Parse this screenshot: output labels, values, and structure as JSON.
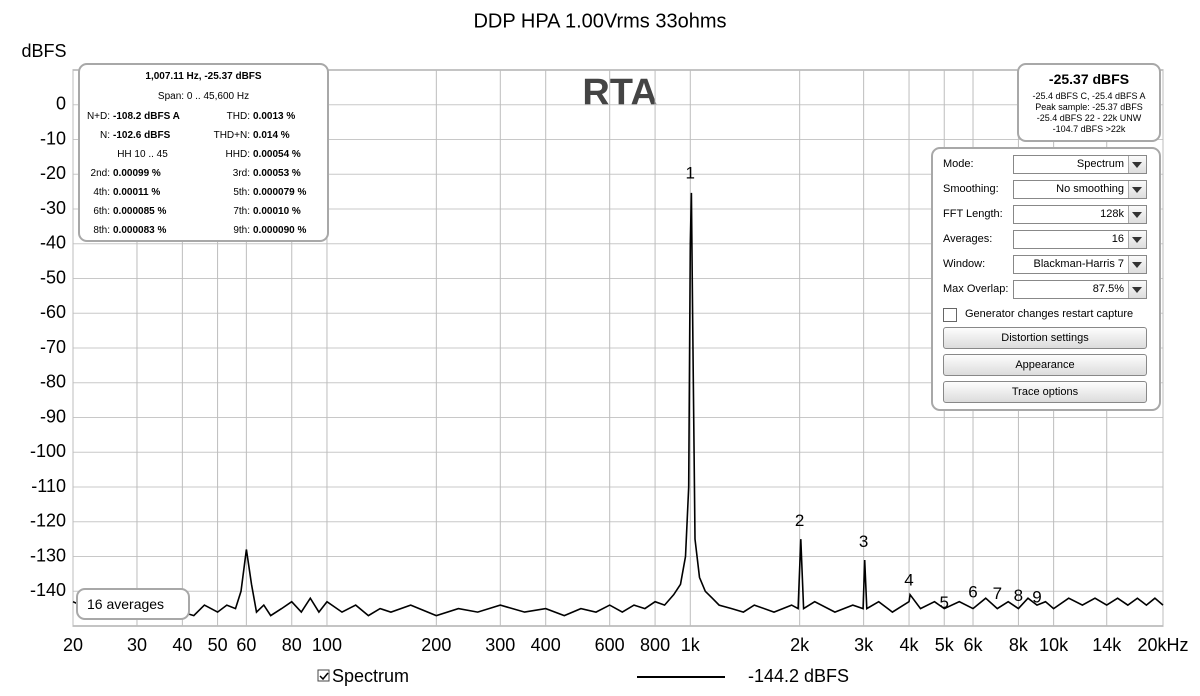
{
  "chart_data": {
    "type": "line",
    "title": "DDP HPA 1.00Vrms 33ohms",
    "y_label": "dBFS",
    "overlay_title": "RTA",
    "x_scale": "log",
    "grid": true,
    "xlim": [
      20,
      20000
    ],
    "ylim": [
      -150,
      10
    ],
    "xticks": [
      20,
      30,
      40,
      50,
      60,
      80,
      100,
      200,
      300,
      400,
      600,
      800,
      {
        "value": 1000,
        "label": "1k"
      },
      {
        "value": 2000,
        "label": "2k"
      },
      {
        "value": 3000,
        "label": "3k"
      },
      {
        "value": 4000,
        "label": "4k"
      },
      {
        "value": 5000,
        "label": "5k"
      },
      {
        "value": 6000,
        "label": "6k"
      },
      {
        "value": 8000,
        "label": "8k"
      },
      {
        "value": 10000,
        "label": "10k"
      },
      {
        "value": 14000,
        "label": "14k"
      },
      {
        "value": 20000,
        "label": "20kHz"
      }
    ],
    "yticks": [
      0,
      -10,
      -20,
      -30,
      -40,
      -50,
      -60,
      -70,
      -80,
      -90,
      -100,
      -110,
      -120,
      -130,
      -140
    ],
    "x": [
      20,
      22,
      25,
      28,
      30,
      33,
      36,
      40,
      43,
      46,
      50,
      53,
      56,
      58,
      60,
      62,
      64,
      67,
      70,
      75,
      80,
      85,
      90,
      95,
      100,
      110,
      120,
      130,
      140,
      150,
      170,
      200,
      230,
      260,
      300,
      350,
      400,
      450,
      500,
      550,
      600,
      650,
      700,
      750,
      800,
      850,
      900,
      940,
      970,
      990,
      1000,
      1007,
      1015,
      1030,
      1060,
      1100,
      1150,
      1200,
      1300,
      1400,
      1500,
      1700,
      1900,
      1980,
      2014,
      2050,
      2200,
      2500,
      2800,
      2990,
      3021,
      3060,
      3300,
      3600,
      4000,
      4028,
      4300,
      4700,
      5000,
      5500,
      6000,
      6500,
      7000,
      7500,
      8000,
      8500,
      9000,
      9500,
      10000,
      11000,
      12000,
      13000,
      14000,
      15000,
      16000,
      17000,
      18000,
      19000,
      20000
    ],
    "series": [
      {
        "name": "Spectrum",
        "color": "#000000",
        "values": [
          -143,
          -145,
          -146,
          -144,
          -146,
          -147,
          -145,
          -146,
          -147,
          -144,
          -146,
          -144,
          -145,
          -140,
          -128,
          -138,
          -146,
          -144,
          -147,
          -145,
          -143,
          -146,
          -142,
          -146,
          -143,
          -146,
          -144,
          -147,
          -145,
          -146,
          -144,
          -147,
          -145,
          -146,
          -144,
          -146,
          -145,
          -147,
          -145,
          -146,
          -144,
          -146,
          -144,
          -145,
          -143,
          -144,
          -141,
          -138,
          -130,
          -110,
          -40,
          -25.37,
          -60,
          -125,
          -136,
          -140,
          -142,
          -144,
          -145,
          -146,
          -144,
          -146,
          -144,
          -145,
          -125,
          -145,
          -143,
          -146,
          -144,
          -145,
          -131,
          -145,
          -143,
          -146,
          -143,
          -141,
          -145,
          -143,
          -145,
          -143,
          -145,
          -142,
          -145,
          -143,
          -145,
          -142,
          -144,
          -143,
          -145,
          -142,
          -144,
          -142,
          -144,
          -142,
          -144,
          -142,
          -144,
          -142,
          -144
        ]
      }
    ],
    "legend_readout": "-144.2 dBFS",
    "markers": [
      {
        "label": "1",
        "x": 1000,
        "y": -20
      },
      {
        "label": "2",
        "x": 2000,
        "y": -120
      },
      {
        "label": "3",
        "x": 3000,
        "y": -126
      },
      {
        "label": "4",
        "x": 4000,
        "y": -137
      },
      {
        "label": "5",
        "x": 5000,
        "y": -143.5
      },
      {
        "label": "6",
        "x": 6000,
        "y": -140.5
      },
      {
        "label": "7",
        "x": 7000,
        "y": -141
      },
      {
        "label": "8",
        "x": 8000,
        "y": -141.5
      },
      {
        "label": "9",
        "x": 9000,
        "y": -142
      }
    ]
  },
  "info": {
    "header": "1,007.11 Hz, -25.37 dBFS",
    "span": "Span: 0 .. 45,600 Hz",
    "rows": [
      [
        [
          "N+D:",
          "-108.2 dBFS A"
        ],
        [
          "THD:",
          "0.0013 %"
        ]
      ],
      [
        [
          "N:",
          "-102.6 dBFS"
        ],
        [
          "THD+N:",
          "0.014 %"
        ]
      ],
      [
        [
          "HH 10 .. 45"
        ],
        [
          "HHD:",
          "0.00054 %"
        ]
      ],
      [
        [
          "2nd:",
          "0.00099 %"
        ],
        [
          "3rd:",
          "0.00053 %"
        ]
      ],
      [
        [
          "4th:",
          "0.00011 %"
        ],
        [
          "5th:",
          "0.000079 %"
        ]
      ],
      [
        [
          "6th:",
          "0.000085 %"
        ],
        [
          "7th:",
          "0.00010 %"
        ]
      ],
      [
        [
          "8th:",
          "0.000083 %"
        ],
        [
          "9th:",
          "0.000090 %"
        ]
      ]
    ]
  },
  "level": {
    "main": "-25.37 dBFS",
    "lines": [
      "-25.4 dBFS C, -25.4 dBFS A",
      "Peak sample: -25.37 dBFS",
      "-25.4 dBFS 22 - 22k UNW",
      "-104.7 dBFS >22k"
    ]
  },
  "controls": {
    "fields": [
      [
        "Mode:",
        "Spectrum"
      ],
      [
        "Smoothing:",
        "No  smoothing"
      ],
      [
        "FFT Length:",
        "128k"
      ],
      [
        "Averages:",
        "16"
      ],
      [
        "Window:",
        "Blackman-Harris 7"
      ],
      [
        "Max Overlap:",
        "87.5%"
      ]
    ],
    "checkbox": "Generator changes restart capture",
    "buttons": [
      "Distortion settings",
      "Appearance",
      "Trace options"
    ]
  },
  "averages_badge": "16 averages"
}
